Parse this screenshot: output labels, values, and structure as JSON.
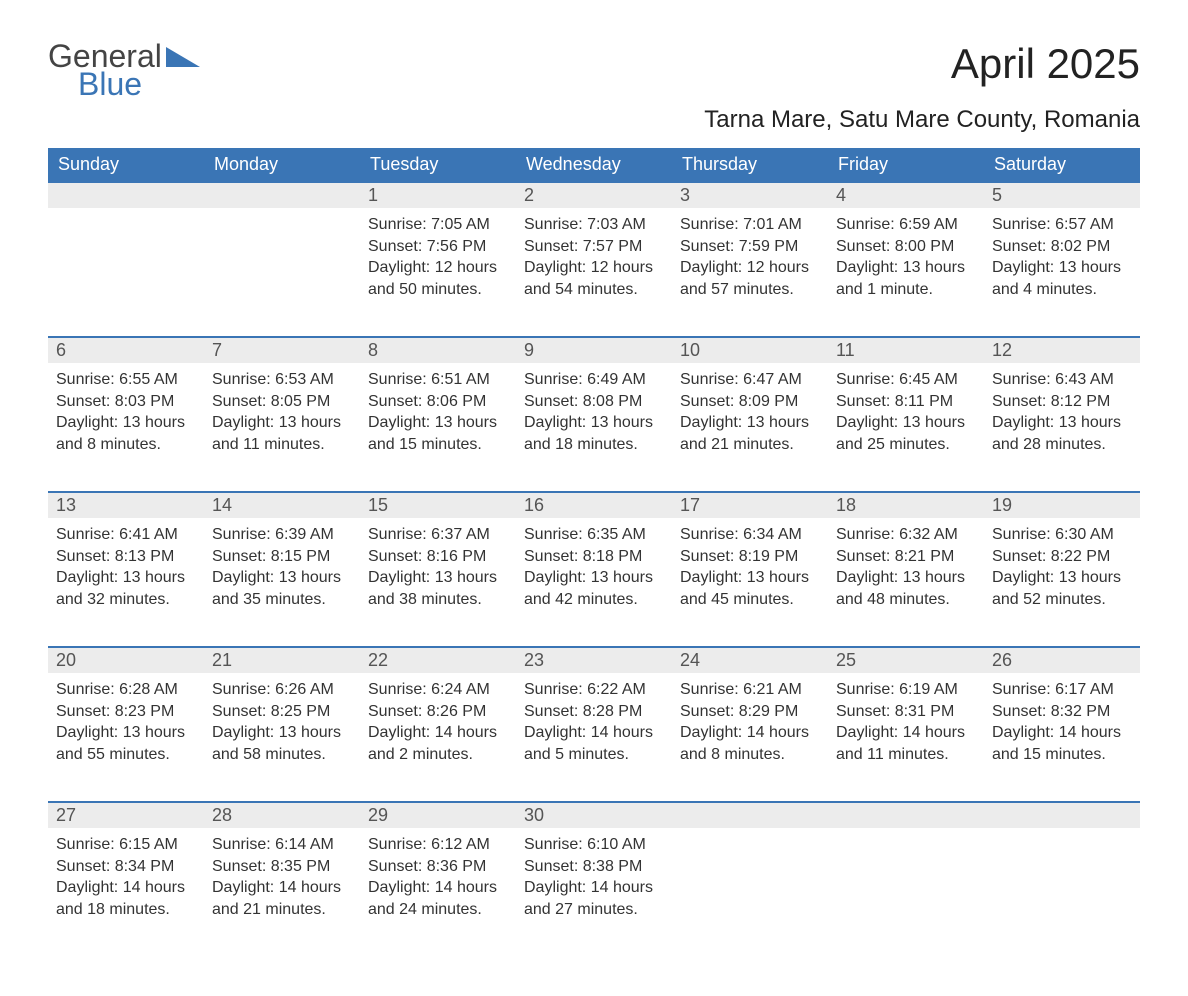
{
  "brand": {
    "part1": "General",
    "part2": "Blue",
    "logo_color": "#3a75b5"
  },
  "title": "April 2025",
  "location": "Tarna Mare, Satu Mare County, Romania",
  "colors": {
    "header_bg": "#3a75b5",
    "header_text": "#ffffff",
    "daynum_bg": "#ececec",
    "daynum_border": "#3a75b5",
    "body_text": "#333333",
    "background": "#ffffff"
  },
  "typography": {
    "title_fontsize": 42,
    "subtitle_fontsize": 24,
    "header_fontsize": 18,
    "daynum_fontsize": 18,
    "cell_fontsize": 16
  },
  "layout": {
    "type": "calendar-table",
    "columns": 7,
    "rows": 5,
    "first_day_column_index": 2
  },
  "weekdays": [
    "Sunday",
    "Monday",
    "Tuesday",
    "Wednesday",
    "Thursday",
    "Friday",
    "Saturday"
  ],
  "days": [
    {
      "n": 1,
      "sunrise": "7:05 AM",
      "sunset": "7:56 PM",
      "daylight": "12 hours and 50 minutes."
    },
    {
      "n": 2,
      "sunrise": "7:03 AM",
      "sunset": "7:57 PM",
      "daylight": "12 hours and 54 minutes."
    },
    {
      "n": 3,
      "sunrise": "7:01 AM",
      "sunset": "7:59 PM",
      "daylight": "12 hours and 57 minutes."
    },
    {
      "n": 4,
      "sunrise": "6:59 AM",
      "sunset": "8:00 PM",
      "daylight": "13 hours and 1 minute."
    },
    {
      "n": 5,
      "sunrise": "6:57 AM",
      "sunset": "8:02 PM",
      "daylight": "13 hours and 4 minutes."
    },
    {
      "n": 6,
      "sunrise": "6:55 AM",
      "sunset": "8:03 PM",
      "daylight": "13 hours and 8 minutes."
    },
    {
      "n": 7,
      "sunrise": "6:53 AM",
      "sunset": "8:05 PM",
      "daylight": "13 hours and 11 minutes."
    },
    {
      "n": 8,
      "sunrise": "6:51 AM",
      "sunset": "8:06 PM",
      "daylight": "13 hours and 15 minutes."
    },
    {
      "n": 9,
      "sunrise": "6:49 AM",
      "sunset": "8:08 PM",
      "daylight": "13 hours and 18 minutes."
    },
    {
      "n": 10,
      "sunrise": "6:47 AM",
      "sunset": "8:09 PM",
      "daylight": "13 hours and 21 minutes."
    },
    {
      "n": 11,
      "sunrise": "6:45 AM",
      "sunset": "8:11 PM",
      "daylight": "13 hours and 25 minutes."
    },
    {
      "n": 12,
      "sunrise": "6:43 AM",
      "sunset": "8:12 PM",
      "daylight": "13 hours and 28 minutes."
    },
    {
      "n": 13,
      "sunrise": "6:41 AM",
      "sunset": "8:13 PM",
      "daylight": "13 hours and 32 minutes."
    },
    {
      "n": 14,
      "sunrise": "6:39 AM",
      "sunset": "8:15 PM",
      "daylight": "13 hours and 35 minutes."
    },
    {
      "n": 15,
      "sunrise": "6:37 AM",
      "sunset": "8:16 PM",
      "daylight": "13 hours and 38 minutes."
    },
    {
      "n": 16,
      "sunrise": "6:35 AM",
      "sunset": "8:18 PM",
      "daylight": "13 hours and 42 minutes."
    },
    {
      "n": 17,
      "sunrise": "6:34 AM",
      "sunset": "8:19 PM",
      "daylight": "13 hours and 45 minutes."
    },
    {
      "n": 18,
      "sunrise": "6:32 AM",
      "sunset": "8:21 PM",
      "daylight": "13 hours and 48 minutes."
    },
    {
      "n": 19,
      "sunrise": "6:30 AM",
      "sunset": "8:22 PM",
      "daylight": "13 hours and 52 minutes."
    },
    {
      "n": 20,
      "sunrise": "6:28 AM",
      "sunset": "8:23 PM",
      "daylight": "13 hours and 55 minutes."
    },
    {
      "n": 21,
      "sunrise": "6:26 AM",
      "sunset": "8:25 PM",
      "daylight": "13 hours and 58 minutes."
    },
    {
      "n": 22,
      "sunrise": "6:24 AM",
      "sunset": "8:26 PM",
      "daylight": "14 hours and 2 minutes."
    },
    {
      "n": 23,
      "sunrise": "6:22 AM",
      "sunset": "8:28 PM",
      "daylight": "14 hours and 5 minutes."
    },
    {
      "n": 24,
      "sunrise": "6:21 AM",
      "sunset": "8:29 PM",
      "daylight": "14 hours and 8 minutes."
    },
    {
      "n": 25,
      "sunrise": "6:19 AM",
      "sunset": "8:31 PM",
      "daylight": "14 hours and 11 minutes."
    },
    {
      "n": 26,
      "sunrise": "6:17 AM",
      "sunset": "8:32 PM",
      "daylight": "14 hours and 15 minutes."
    },
    {
      "n": 27,
      "sunrise": "6:15 AM",
      "sunset": "8:34 PM",
      "daylight": "14 hours and 18 minutes."
    },
    {
      "n": 28,
      "sunrise": "6:14 AM",
      "sunset": "8:35 PM",
      "daylight": "14 hours and 21 minutes."
    },
    {
      "n": 29,
      "sunrise": "6:12 AM",
      "sunset": "8:36 PM",
      "daylight": "14 hours and 24 minutes."
    },
    {
      "n": 30,
      "sunrise": "6:10 AM",
      "sunset": "8:38 PM",
      "daylight": "14 hours and 27 minutes."
    }
  ],
  "labels": {
    "sunrise": "Sunrise: ",
    "sunset": "Sunset: ",
    "daylight": "Daylight: "
  }
}
